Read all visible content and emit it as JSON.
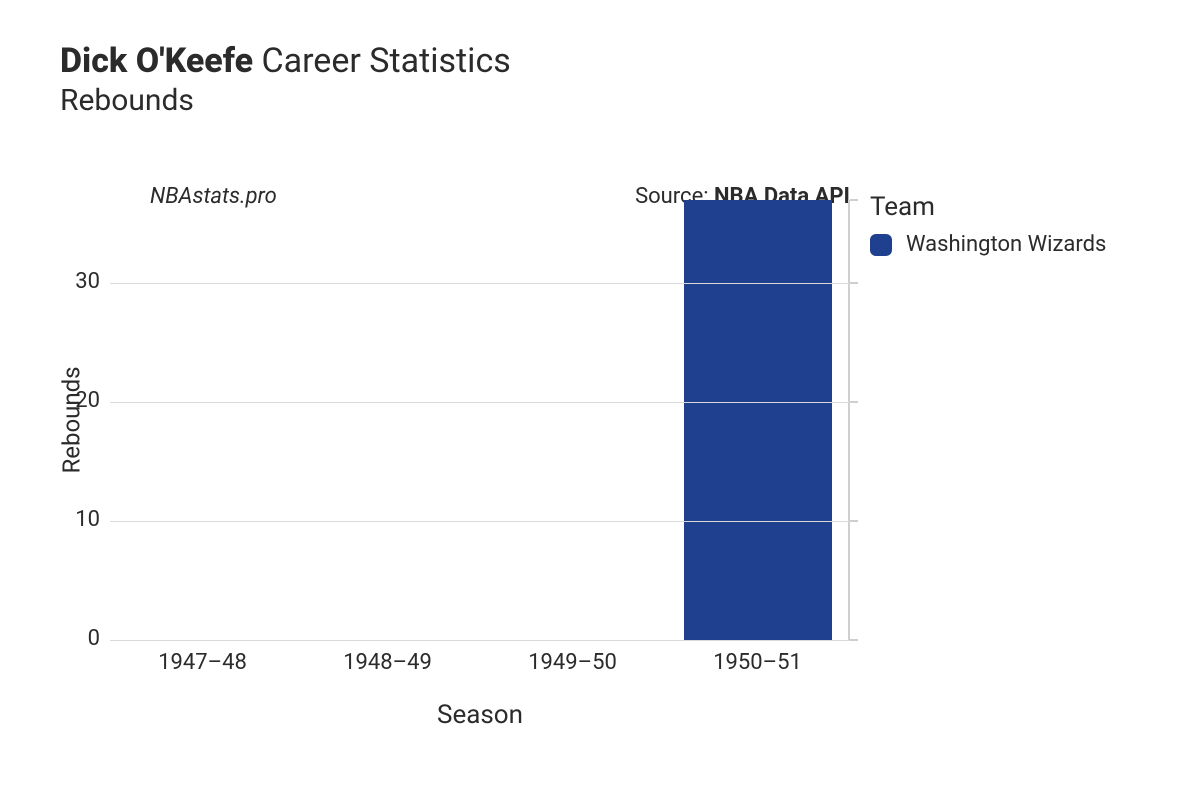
{
  "title": {
    "player_name": "Dick O'Keefe",
    "suffix": " Career Statistics",
    "subtitle": "Rebounds",
    "title_fontsize": 34,
    "subtitle_fontsize": 30,
    "text_color": "#2b2b2b"
  },
  "meta": {
    "site": "NBAstats.pro",
    "source_prefix": "Source: ",
    "source_name": "NBA Data API",
    "fontsize": 22
  },
  "chart": {
    "type": "bar",
    "xlabel": "Season",
    "ylabel": "Rebounds",
    "label_fontsize": 24,
    "tick_fontsize": 22,
    "categories": [
      "1947–48",
      "1948–49",
      "1949–50",
      "1950–51"
    ],
    "values": [
      0,
      0,
      0,
      37
    ],
    "series_team": "Washington Wizards",
    "bar_color": "#1f3f8f",
    "bar_width_pct": 80,
    "ylim": [
      0,
      37
    ],
    "yticks": [
      0,
      10,
      20,
      30
    ],
    "grid_color": "#d9d9d9",
    "axis_color": "#cfcfcf",
    "background_color": "#ffffff"
  },
  "legend": {
    "title": "Team",
    "items": [
      {
        "label": "Washington Wizards",
        "color": "#1f3f8f"
      }
    ],
    "title_fontsize": 26,
    "item_fontsize": 22
  }
}
